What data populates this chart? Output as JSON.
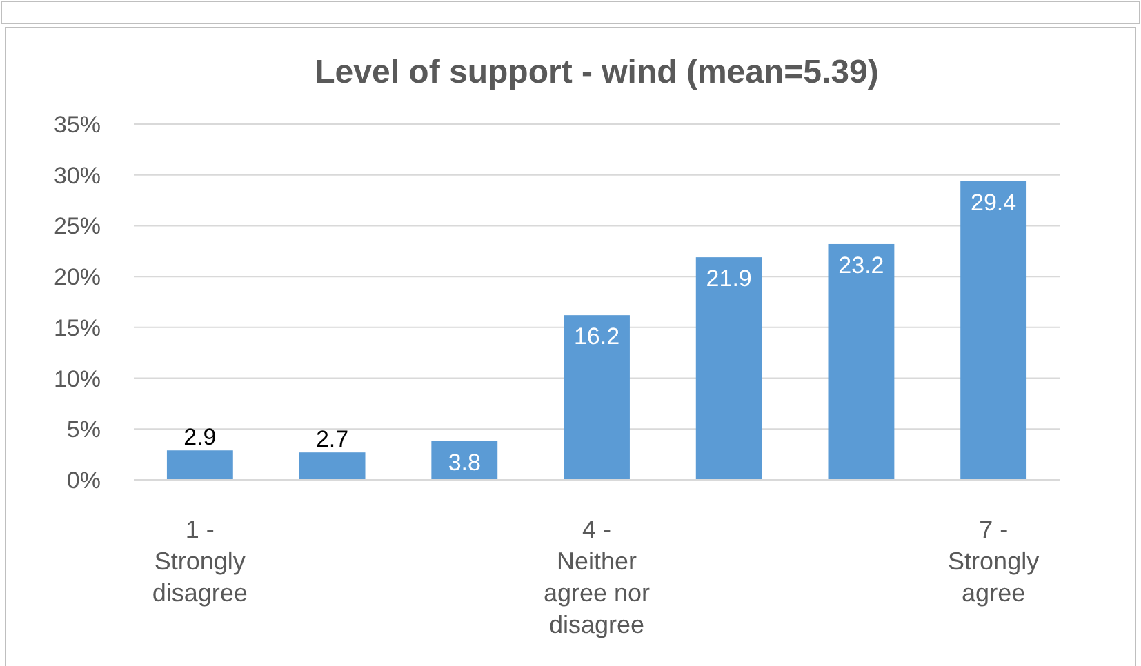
{
  "chart_data": {
    "type": "bar",
    "title": "Level of support - wind (mean=5.39)",
    "categories": [
      "1 - Strongly disagree",
      null,
      null,
      "4 - Neither agree nor disagree",
      null,
      null,
      "7 - Strongly agree"
    ],
    "values": [
      2.9,
      2.7,
      3.8,
      16.2,
      21.9,
      23.2,
      29.4
    ],
    "color": "#5b9bd5",
    "ylim": [
      0,
      35
    ],
    "yticks": [
      {
        "value": 0,
        "label": "0%"
      },
      {
        "value": 5,
        "label": "5%"
      },
      {
        "value": 10,
        "label": "10%"
      },
      {
        "value": 15,
        "label": "15%"
      },
      {
        "value": 20,
        "label": "20%"
      },
      {
        "value": 25,
        "label": "25%"
      },
      {
        "value": 30,
        "label": "30%"
      },
      {
        "value": 35,
        "label": "35%"
      }
    ],
    "grid": "y",
    "data_labels": true
  }
}
